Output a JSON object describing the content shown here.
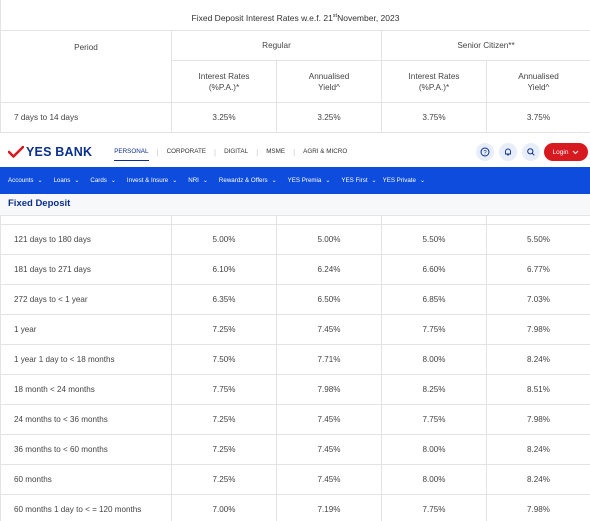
{
  "caption": {
    "text_before": "Fixed Deposit Interest Rates w.e.f. 21",
    "sup": "st",
    "text_after": "November, 2023"
  },
  "table_header": {
    "period": "Period",
    "regular": "Regular",
    "senior": "Senior Citizen**",
    "interest_line1": "Interest Rates",
    "interest_line2": "(%P.A.)*",
    "yield_line1": "Annualised",
    "yield_line2": "Yield^"
  },
  "first_row": {
    "period": "7 days to 14 days",
    "r_rate": "3.25%",
    "r_yield": "3.25%",
    "s_rate": "3.75%",
    "s_yield": "3.75%"
  },
  "nav": {
    "brand": "YES BANK",
    "segments": [
      "PERSONAL",
      "CORPORATE",
      "DIGITAL",
      "MSME",
      "AGRI & MICRO"
    ],
    "login": "Login"
  },
  "menu": [
    "Accounts",
    "Loans",
    "Cards",
    "Invest & Insure",
    "NRI",
    "Rewardz & Offers",
    "YES Premia",
    "YES First",
    "YES Private"
  ],
  "section_title": "Fixed Deposit",
  "rows": [
    {
      "period": "121 days to 180 days",
      "r_rate": "5.00%",
      "r_yield": "5.00%",
      "s_rate": "5.50%",
      "s_yield": "5.50%"
    },
    {
      "period": "181 days to 271 days",
      "r_rate": "6.10%",
      "r_yield": "6.24%",
      "s_rate": "6.60%",
      "s_yield": "6.77%"
    },
    {
      "period": "272 days to < 1 year",
      "r_rate": "6.35%",
      "r_yield": "6.50%",
      "s_rate": "6.85%",
      "s_yield": "7.03%"
    },
    {
      "period": "1 year",
      "r_rate": "7.25%",
      "r_yield": "7.45%",
      "s_rate": "7.75%",
      "s_yield": "7.98%"
    },
    {
      "period": "1 year 1 day to < 18 months",
      "r_rate": "7.50%",
      "r_yield": "7.71%",
      "s_rate": "8.00%",
      "s_yield": "8.24%"
    },
    {
      "period": "18 month < 24 months",
      "r_rate": "7.75%",
      "r_yield": "7.98%",
      "s_rate": "8.25%",
      "s_yield": "8.51%"
    },
    {
      "period": "24 months to < 36 months",
      "r_rate": "7.25%",
      "r_yield": "7.45%",
      "s_rate": "7.75%",
      "s_yield": "7.98%"
    },
    {
      "period": "36 months to < 60 months",
      "r_rate": "7.25%",
      "r_yield": "7.45%",
      "s_rate": "8.00%",
      "s_yield": "8.24%"
    },
    {
      "period": "60 months",
      "r_rate": "7.25%",
      "r_yield": "7.45%",
      "s_rate": "8.00%",
      "s_yield": "8.24%"
    },
    {
      "period": "60 months 1 day to < = 120 months",
      "r_rate": "7.00%",
      "r_yield": "7.19%",
      "s_rate": "7.75%",
      "s_yield": "7.98%"
    }
  ],
  "colors": {
    "brand_blue": "#0a2f8c",
    "menu_blue": "#0d4cdc",
    "login_red": "#d71920"
  },
  "icons": [
    "help-icon",
    "bell-icon",
    "search-icon",
    "chevron-down-icon"
  ]
}
